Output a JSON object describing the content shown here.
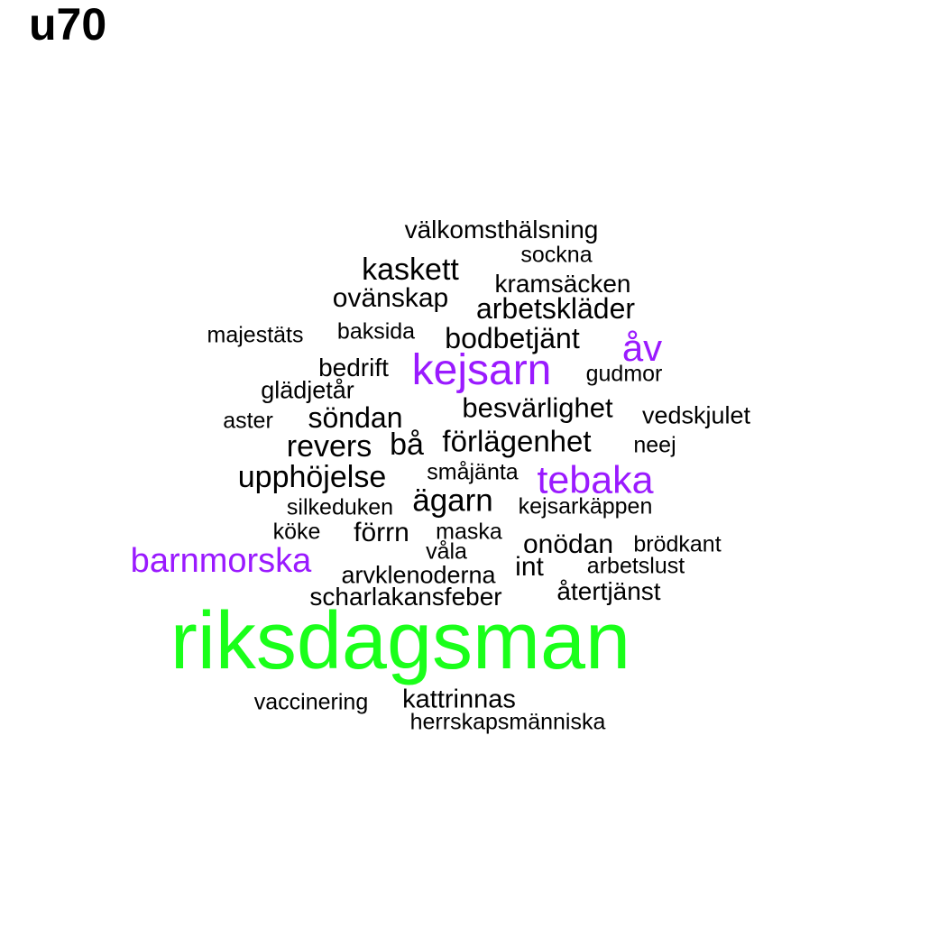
{
  "title": "u70",
  "colors": {
    "background": "#ffffff",
    "default": "#000000",
    "purple": "#9a1aff",
    "green": "#1aff1a"
  },
  "words": [
    {
      "text": "välkomsthälsning",
      "color": "default"
    },
    {
      "text": "sockna",
      "color": "default"
    },
    {
      "text": "kaskett",
      "color": "default"
    },
    {
      "text": "kramsäcken",
      "color": "default"
    },
    {
      "text": "ovänskap",
      "color": "default"
    },
    {
      "text": "arbetskläder",
      "color": "default"
    },
    {
      "text": "majestäts",
      "color": "default"
    },
    {
      "text": "baksida",
      "color": "default"
    },
    {
      "text": "bodbetjänt",
      "color": "default"
    },
    {
      "text": "åv",
      "color": "purple"
    },
    {
      "text": "bedrift",
      "color": "default"
    },
    {
      "text": "kejsarn",
      "color": "purple"
    },
    {
      "text": "gudmor",
      "color": "default"
    },
    {
      "text": "glädjetår",
      "color": "default"
    },
    {
      "text": "besvärlighet",
      "color": "default"
    },
    {
      "text": "aster",
      "color": "default"
    },
    {
      "text": "söndan",
      "color": "default"
    },
    {
      "text": "vedskjulet",
      "color": "default"
    },
    {
      "text": "revers",
      "color": "default"
    },
    {
      "text": "bå",
      "color": "default"
    },
    {
      "text": "förlägenhet",
      "color": "default"
    },
    {
      "text": "neej",
      "color": "default"
    },
    {
      "text": "upphöjelse",
      "color": "default"
    },
    {
      "text": "småjänta",
      "color": "default"
    },
    {
      "text": "tebaka",
      "color": "purple"
    },
    {
      "text": "silkeduken",
      "color": "default"
    },
    {
      "text": "ägarn",
      "color": "default"
    },
    {
      "text": "kejsarkäppen",
      "color": "default"
    },
    {
      "text": "köke",
      "color": "default"
    },
    {
      "text": "förrn",
      "color": "default"
    },
    {
      "text": "maska",
      "color": "default"
    },
    {
      "text": "onödan",
      "color": "default"
    },
    {
      "text": "brödkant",
      "color": "default"
    },
    {
      "text": "barnmorska",
      "color": "purple"
    },
    {
      "text": "våla",
      "color": "default"
    },
    {
      "text": "int",
      "color": "default"
    },
    {
      "text": "arbetslust",
      "color": "default"
    },
    {
      "text": "arvklenoderna",
      "color": "default"
    },
    {
      "text": "återtjänst",
      "color": "default"
    },
    {
      "text": "scharlakansfeber",
      "color": "default"
    },
    {
      "text": "riksdagsman",
      "color": "green"
    },
    {
      "text": "vaccinering",
      "color": "default"
    },
    {
      "text": "kattrinnas",
      "color": "default"
    },
    {
      "text": "herrskapsmänniska",
      "color": "default"
    }
  ]
}
